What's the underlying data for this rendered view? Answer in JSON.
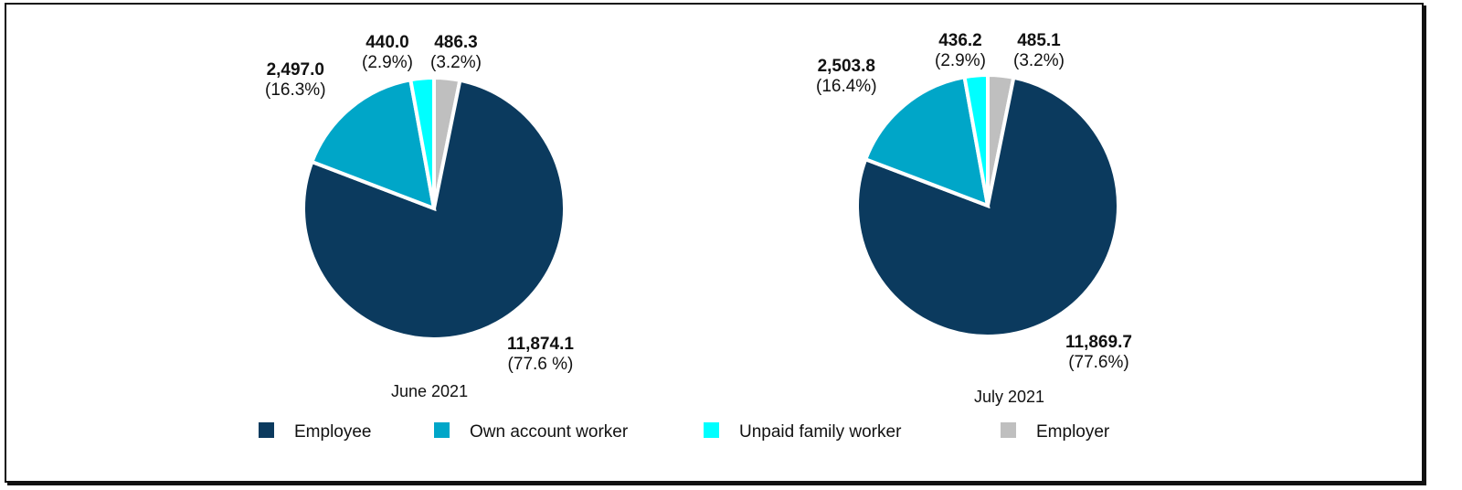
{
  "chart_data": [
    {
      "type": "pie",
      "title": "June 2021",
      "slices": [
        {
          "name": "Employer",
          "value": 486.3,
          "value_label": "486.3",
          "pct_label": "(3.2%)",
          "color": "#bfbfbf"
        },
        {
          "name": "Employee",
          "value": 11874.1,
          "value_label": "11,874.1",
          "pct_label": "(77.6 %)",
          "color": "#0b3a5e"
        },
        {
          "name": "Own account worker",
          "value": 2497.0,
          "value_label": "2,497.0",
          "pct_label": "(16.3%)",
          "color": "#00a6c8"
        },
        {
          "name": "Unpaid family worker",
          "value": 440.0,
          "value_label": "440.0",
          "pct_label": "(2.9%)",
          "color": "#00ffff"
        }
      ]
    },
    {
      "type": "pie",
      "title": "July 2021",
      "slices": [
        {
          "name": "Employer",
          "value": 485.1,
          "value_label": "485.1",
          "pct_label": "(3.2%)",
          "color": "#bfbfbf"
        },
        {
          "name": "Employee",
          "value": 11869.7,
          "value_label": "11,869.7",
          "pct_label": "(77.6%)",
          "color": "#0b3a5e"
        },
        {
          "name": "Own account worker",
          "value": 2503.8,
          "value_label": "2,503.8",
          "pct_label": "(16.4%)",
          "color": "#00a6c8"
        },
        {
          "name": "Unpaid family worker",
          "value": 436.2,
          "value_label": "436.2",
          "pct_label": "(2.9%)",
          "color": "#00ffff"
        }
      ]
    }
  ],
  "legend": [
    {
      "label": "Employee",
      "color": "#0b3a5e"
    },
    {
      "label": "Own account worker",
      "color": "#00a6c8"
    },
    {
      "label": "Unpaid family worker",
      "color": "#00ffff"
    },
    {
      "label": "Employer",
      "color": "#bfbfbf"
    }
  ]
}
